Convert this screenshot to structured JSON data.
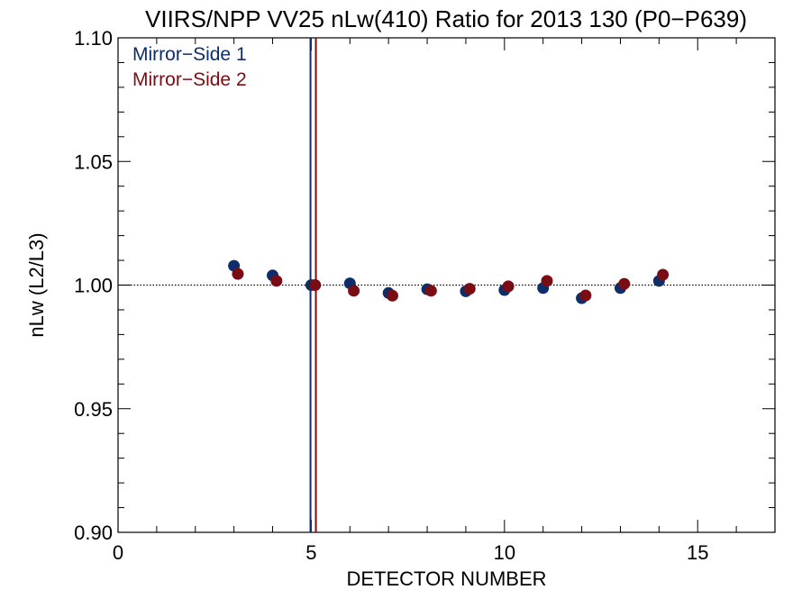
{
  "chart_data": {
    "type": "scatter",
    "title": "VIIRS/NPP VV25 nLw(410) Ratio for 2013 130 (P0−P639)",
    "xlabel": "DETECTOR NUMBER",
    "ylabel": "nLw (L2/L3)",
    "xlim": [
      0,
      17
    ],
    "ylim": [
      0.9,
      1.1
    ],
    "x_ticks": [
      0,
      5,
      10,
      15
    ],
    "x_tick_labels": [
      "0",
      "5",
      "10",
      "15"
    ],
    "y_ticks": [
      0.9,
      0.95,
      1.0,
      1.05,
      1.1
    ],
    "y_tick_labels": [
      "0.90",
      "0.95",
      "1.00",
      "1.05",
      "1.10"
    ],
    "reference_line_y": 1.0,
    "legend_position": "top-left",
    "series": [
      {
        "name": "Mirror−Side 1",
        "color": "#0d2d6b",
        "x": [
          3,
          4,
          5,
          6,
          7,
          8,
          9,
          10,
          11,
          12,
          13,
          14
        ],
        "y": [
          1.0078,
          1.0039,
          1.0,
          1.0007,
          0.9968,
          0.9983,
          0.9975,
          0.998,
          0.9988,
          0.9947,
          0.9988,
          1.0017
        ],
        "marker_line_x": 4.98
      },
      {
        "name": "Mirror−Side 2",
        "color": "#7a0c14",
        "x": [
          3.1,
          4.1,
          5.1,
          6.1,
          7.1,
          8.1,
          9.1,
          10.1,
          11.1,
          12.1,
          13.1,
          14.1
        ],
        "y": [
          1.0045,
          1.0017,
          1.0,
          0.9977,
          0.9957,
          0.9977,
          0.9985,
          0.9995,
          1.0017,
          0.9958,
          1.0005,
          1.0042
        ],
        "marker_line_x": 5.12
      }
    ]
  }
}
